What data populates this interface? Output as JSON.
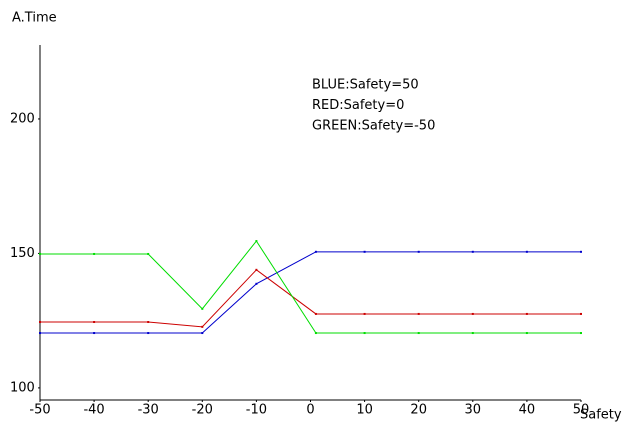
{
  "chart_data": {
    "type": "line",
    "y_label": "A.Time",
    "x_label": "Safety",
    "x": [
      -50,
      -40,
      -30,
      -20,
      -10,
      1,
      10,
      20,
      30,
      40,
      50
    ],
    "series": [
      {
        "name": "BLUE:Safety=50",
        "color": "#0000cc",
        "values": [
          120.4,
          120.4,
          120.4,
          120.4,
          138.7,
          150.6,
          150.6,
          150.6,
          150.6,
          150.6,
          150.6
        ]
      },
      {
        "name": "RED:Safety=0",
        "color": "#cc0000",
        "values": [
          124.5,
          124.5,
          124.5,
          122.7,
          143.9,
          127.5,
          127.5,
          127.5,
          127.5,
          127.5,
          127.5
        ]
      },
      {
        "name": "GREEN:Safety=-50",
        "color": "#00dd00",
        "values": [
          149.8,
          149.8,
          149.8,
          129.4,
          154.6,
          120.4,
          120.4,
          120.4,
          120.4,
          120.4,
          120.4
        ]
      }
    ],
    "xlim": [
      -50,
      50
    ],
    "ylim": [
      95.5,
      227.5
    ],
    "xticks": [
      -50,
      -40,
      -30,
      -20,
      -10,
      0,
      10,
      20,
      30,
      40,
      50
    ],
    "yticks": [
      100,
      150,
      200
    ],
    "grid": false
  }
}
